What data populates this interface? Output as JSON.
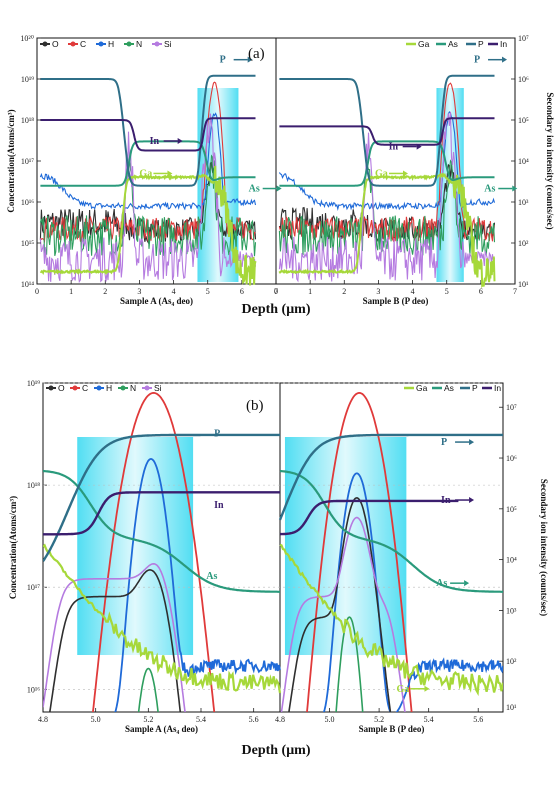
{
  "figure": {
    "depth_label": "Depth (μm)",
    "conc_label": "Concentration(Atoms/cm³)",
    "sims_label": "Secondary ion intensity (counts/sec)"
  },
  "colors": {
    "O": "#2f2f2f",
    "C": "#e03a3a",
    "H": "#1f6ad8",
    "N": "#2e9e5e",
    "Si": "#b57be0",
    "Ga": "#a6d83a",
    "As": "#2a9a7c",
    "P": "#2f6f88",
    "In": "#3b1e6e",
    "highlight": "#33d8f0"
  },
  "chart_data": [
    {
      "type": "line",
      "panel_label": "(a)",
      "y_scale": "log",
      "left_ylabel": "Concentration(Atoms/cm³)",
      "right_ylabel": "Secondary ion intensity (counts/sec)",
      "xlabel": "Depth (μm)",
      "left_legend": [
        "O",
        "C",
        "H",
        "N",
        "Si"
      ],
      "right_legend": [
        "Ga",
        "As",
        "P",
        "In"
      ],
      "subplots": [
        {
          "sample_label": "Sample A (As₄ deo)",
          "xlim": [
            0,
            7
          ],
          "x_ticks": [
            "0",
            "1",
            "2",
            "3",
            "4",
            "5",
            "6",
            "7"
          ],
          "ylim_left": [
            100000000000000.0,
            1e+20
          ],
          "left_ticks": [
            "10¹⁴",
            "10¹⁵",
            "10¹⁶",
            "10¹⁷",
            "10¹⁸",
            "10¹⁹",
            "10²⁰"
          ],
          "highlight_x": [
            4.7,
            5.9
          ],
          "annotations": [
            {
              "text": "P",
              "x": 5.35,
              "y": 2.5e+19
            },
            {
              "text": "In",
              "x": 3.3,
              "y": 2.6e+17
            },
            {
              "text": "Ga",
              "x": 3.0,
              "y": 4.2e+16
            },
            {
              "text": "As",
              "x": 6.2,
              "y": 1.8e+16
            }
          ]
        },
        {
          "sample_label": "Sample B (P deo)",
          "xlim": [
            0,
            7
          ],
          "x_ticks": [
            "0",
            "1",
            "2",
            "3",
            "4",
            "5",
            "6",
            "7"
          ],
          "ylim_right": [
            10.0,
            10000000.0
          ],
          "right_ticks": [
            "10¹",
            "10²",
            "10³",
            "10⁴",
            "10⁵",
            "10⁶",
            "10⁷"
          ],
          "highlight_x": [
            4.7,
            5.5
          ],
          "annotations": [
            {
              "text": "P",
              "x": 5.8,
              "y": 2.5e+19
            },
            {
              "text": "In",
              "x": 3.3,
              "y": 1.9e+17
            },
            {
              "text": "Ga",
              "x": 2.9,
              "y": 4.2e+16
            },
            {
              "text": "As",
              "x": 6.1,
              "y": 1.8e+16
            }
          ]
        }
      ]
    },
    {
      "type": "line",
      "panel_label": "(b)",
      "y_scale": "log",
      "left_ylabel": "Concentration(Atoms/cm³)",
      "right_ylabel": "Secondary ion intensity (counts/sec)",
      "xlabel": "Depth (μm)",
      "left_legend": [
        "O",
        "C",
        "H",
        "N",
        "Si"
      ],
      "right_legend": [
        "Ga",
        "As",
        "P",
        "In"
      ],
      "subplots": [
        {
          "sample_label": "Sample A (As₄ deo)",
          "xlim": [
            4.8,
            5.7
          ],
          "x_ticks": [
            "4.8",
            "5.0",
            "5.2",
            "5.4",
            "5.6"
          ],
          "ylim_left": [
            1000000000000000.0,
            1e+19
          ],
          "left_ticks": [
            "10¹⁶",
            "10¹⁷",
            "10¹⁸",
            "10¹⁹"
          ],
          "highlight_x": [
            4.93,
            5.37
          ],
          "annotations": [
            {
              "text": "P",
              "x": 5.45,
              "y": 3e+18
            },
            {
              "text": "In",
              "x": 5.45,
              "y": 6e+17
            },
            {
              "text": "As",
              "x": 5.42,
              "y": 1.2e+17
            }
          ]
        },
        {
          "sample_label": "Sample B (P deo)",
          "xlim": [
            4.8,
            5.7
          ],
          "x_ticks": [
            "4.8",
            "5.0",
            "5.2",
            "5.4",
            "5.6"
          ],
          "ylim_right": [
            10.0,
            10000000.0
          ],
          "right_ticks": [
            "10²",
            "10³",
            "10⁴",
            "10⁵",
            "10⁶",
            "10⁷"
          ],
          "highlight_x": [
            4.82,
            5.31
          ],
          "annotations": [
            {
              "text": "P",
              "x": 5.45,
              "y": 1800000.0
            },
            {
              "text": "In",
              "x": 5.45,
              "y": 130000.0
            },
            {
              "text": "As",
              "x": 5.43,
              "y": 3000.0
            },
            {
              "text": "Ga",
              "x": 5.27,
              "y": 25
            }
          ]
        }
      ]
    }
  ]
}
